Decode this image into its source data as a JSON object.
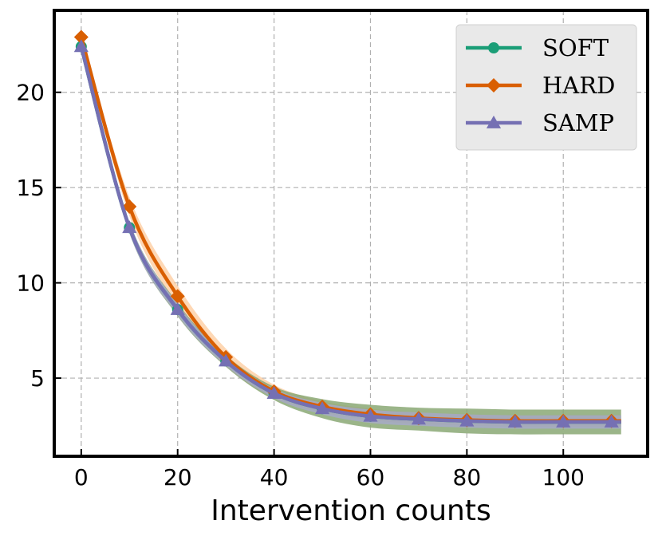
{
  "chart_data": {
    "type": "line",
    "title": "",
    "xlabel": "Intervention counts",
    "ylabel": "",
    "xlim": [
      -5.6,
      117.5
    ],
    "ylim": [
      0.9,
      24.3
    ],
    "xticks": [
      0,
      20,
      40,
      60,
      80,
      100
    ],
    "xtick_labels": [
      "0",
      "20",
      "40",
      "60",
      "80",
      "100"
    ],
    "yticks": [
      5,
      10,
      15,
      20
    ],
    "ytick_labels": [
      "5",
      "10",
      "15",
      "20"
    ],
    "grid": true,
    "legend_position": "top-right",
    "x": [
      0,
      10,
      20,
      30,
      40,
      50,
      60,
      70,
      80,
      90,
      100,
      110
    ],
    "series": [
      {
        "name": "SOFT",
        "color": "#1b9e77",
        "band_color": "#8aa874",
        "marker": "circle",
        "values": [
          22.4,
          12.9,
          8.6,
          5.9,
          4.2,
          3.4,
          3.0,
          2.85,
          2.75,
          2.7,
          2.7,
          2.7
        ],
        "band_width": [
          0.15,
          0.3,
          0.35,
          0.3,
          0.35,
          0.5,
          0.6,
          0.6,
          0.65,
          0.65,
          0.65,
          0.65
        ]
      },
      {
        "name": "HARD",
        "color": "#d95f02",
        "band_color": "#fdc896",
        "marker": "diamond",
        "values": [
          22.9,
          14.0,
          9.3,
          6.1,
          4.3,
          3.5,
          3.1,
          2.9,
          2.8,
          2.75,
          2.75,
          2.75
        ],
        "band_width": [
          0.1,
          0.5,
          0.55,
          0.45,
          0.35,
          0.3,
          0.3,
          0.3,
          0.3,
          0.3,
          0.3,
          0.3
        ]
      },
      {
        "name": "SAMP",
        "color": "#7570b3",
        "band_color": "#a9a8d4",
        "marker": "triangle",
        "values": [
          22.4,
          12.9,
          8.6,
          5.9,
          4.2,
          3.4,
          3.0,
          2.85,
          2.75,
          2.7,
          2.7,
          2.7
        ],
        "band_width": [
          0.15,
          0.3,
          0.3,
          0.25,
          0.25,
          0.3,
          0.35,
          0.35,
          0.35,
          0.35,
          0.35,
          0.35
        ]
      }
    ]
  }
}
